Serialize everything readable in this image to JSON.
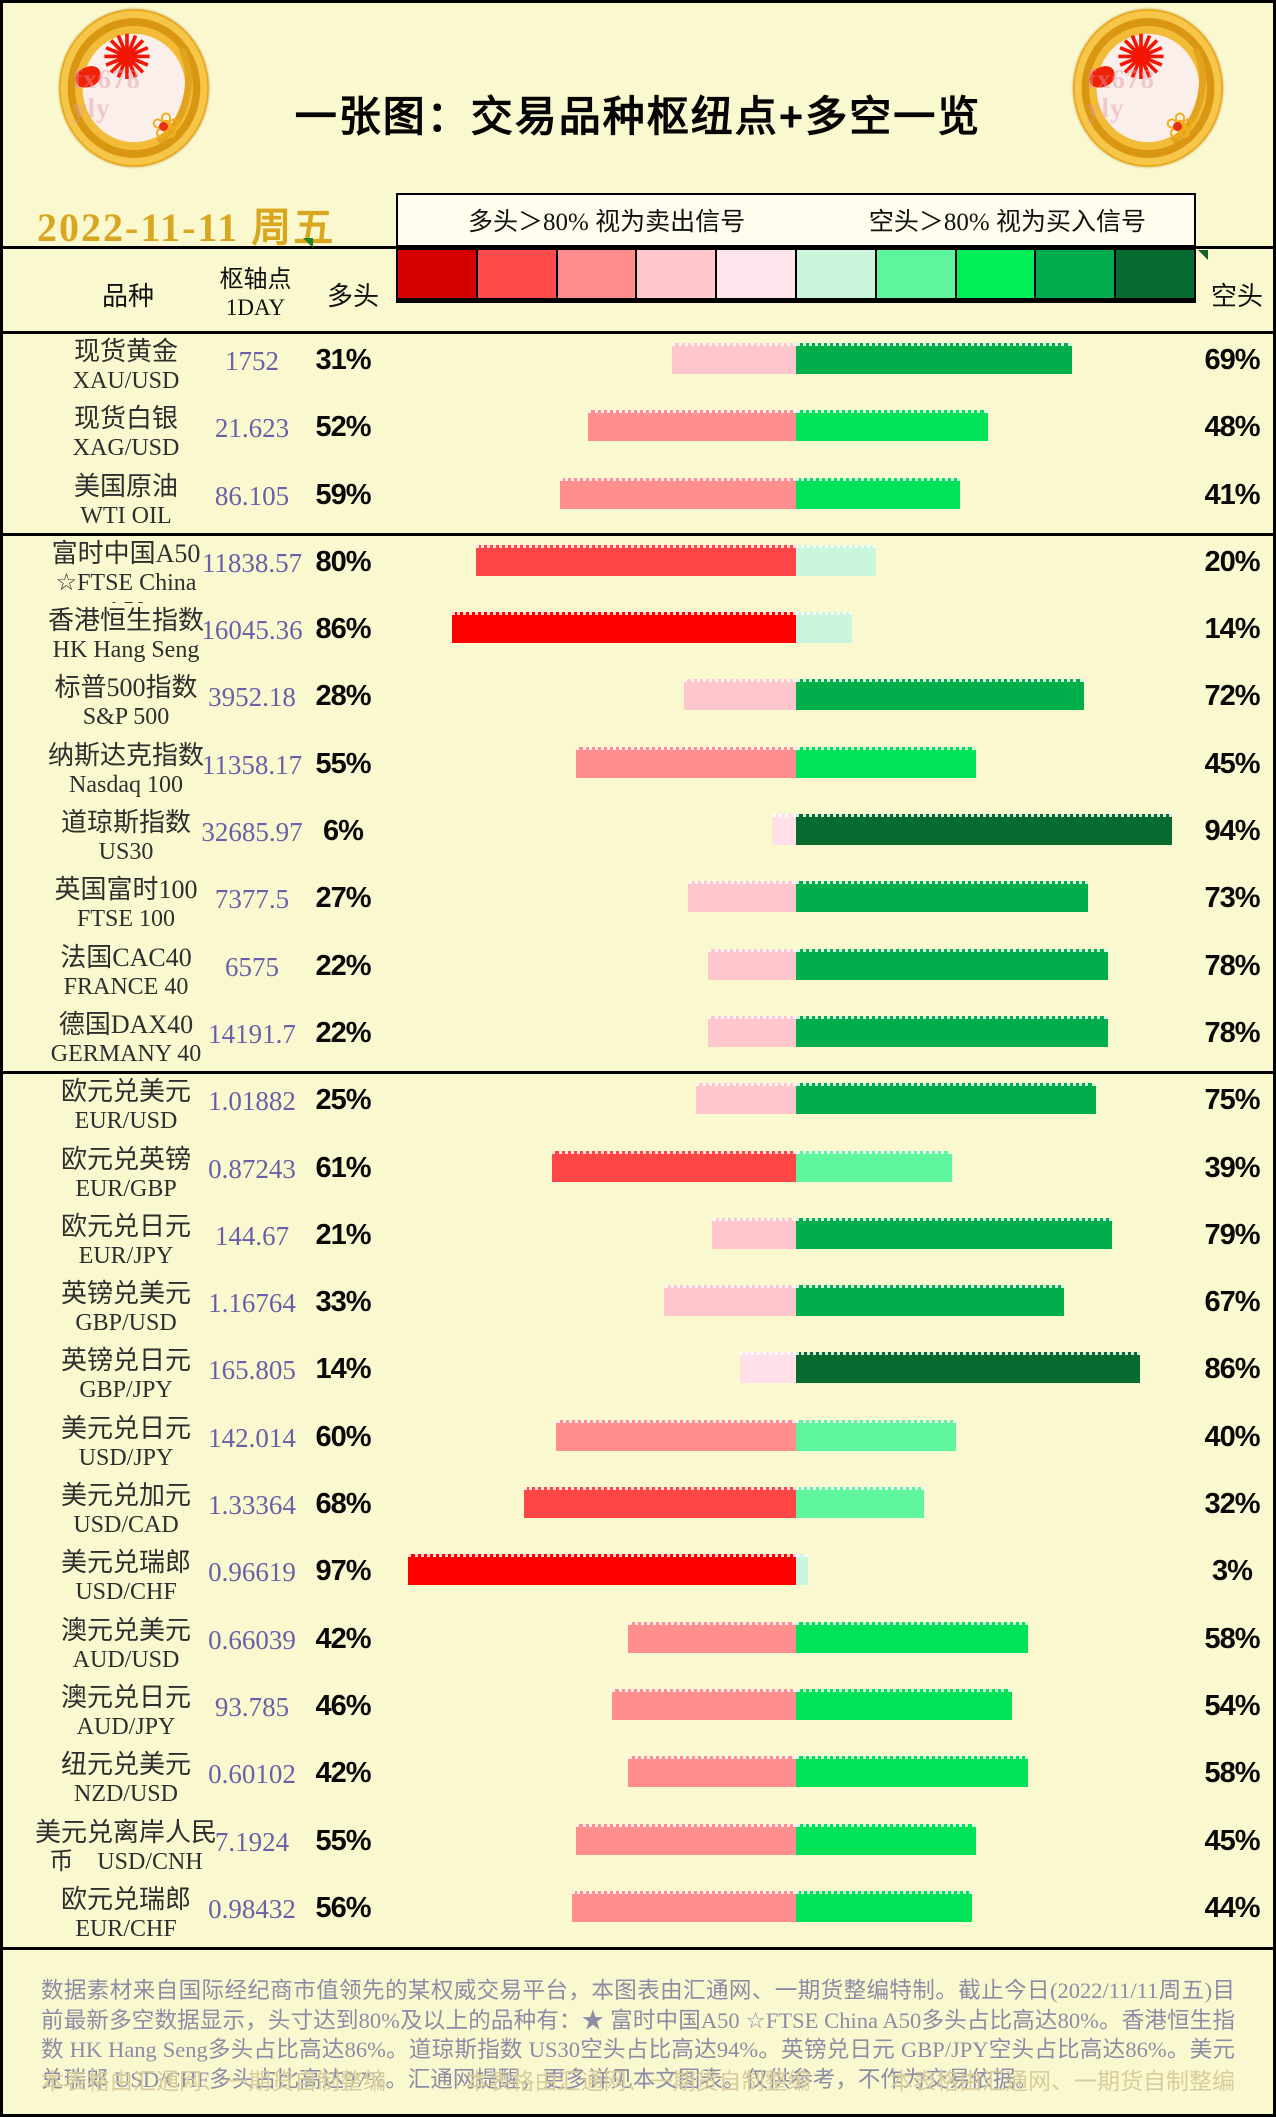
{
  "header": {
    "title": "一张图：交易品种枢纽点+多空一览",
    "date": "2022-11-11 周五",
    "logo_watermark_line1": "fx678",
    "logo_watermark_line2": "yly"
  },
  "legend": {
    "long_rule": "多头＞80% 视为卖出信号",
    "short_rule": "空头＞80% 视为买入信号"
  },
  "columns": {
    "instrument": "品种",
    "pivot_line1": "枢轴点",
    "pivot_line2": "1DAY",
    "long": "多头",
    "short": "空头"
  },
  "scale_colors": [
    "#D50000",
    "#FE4B4B",
    "#FE8E8E",
    "#FFC6CB",
    "#FFE5EC",
    "#C9F6DC",
    "#5EF59E",
    "#00EF57",
    "#00AC4B",
    "#066B2F"
  ],
  "table": {
    "rows": [
      {
        "name_lines": [
          "现货黄金",
          "XAU/USD"
        ],
        "pivot": "1752",
        "long_pct": 31,
        "short_pct": 69,
        "long_color": "#FFC6CB",
        "short_color": "#00AE4B",
        "group_end": false
      },
      {
        "name_lines": [
          "现货白银",
          "XAG/USD"
        ],
        "pivot": "21.623",
        "long_pct": 52,
        "short_pct": 48,
        "long_color": "#FF8E8E",
        "short_color": "#00E257",
        "group_end": false
      },
      {
        "name_lines": [
          "美国原油",
          "WTI OIL"
        ],
        "pivot": "86.105",
        "long_pct": 59,
        "short_pct": 41,
        "long_color": "#FF8E8E",
        "short_color": "#00E257",
        "group_end": true
      },
      {
        "name_lines": [
          "富时中国A50",
          "☆FTSE China",
          "A50"
        ],
        "pivot": "11838.57",
        "long_pct": 80,
        "short_pct": 20,
        "long_color": "#FF4646",
        "short_color": "#C9F6DC",
        "group_end": false
      },
      {
        "name_lines": [
          "香港恒生指数",
          "HK Hang Seng"
        ],
        "pivot": "16045.36",
        "long_pct": 86,
        "short_pct": 14,
        "long_color": "#FF0000",
        "short_color": "#C9F6DC",
        "group_end": false
      },
      {
        "name_lines": [
          "标普500指数",
          "S&P 500"
        ],
        "pivot": "3952.18",
        "long_pct": 28,
        "short_pct": 72,
        "long_color": "#FFC6CB",
        "short_color": "#00AE4B",
        "group_end": false
      },
      {
        "name_lines": [
          "纳斯达克指数",
          "Nasdaq 100"
        ],
        "pivot": "11358.17",
        "long_pct": 55,
        "short_pct": 45,
        "long_color": "#FF8E8E",
        "short_color": "#00E257",
        "group_end": false
      },
      {
        "name_lines": [
          "道琼斯指数",
          "US30"
        ],
        "pivot": "32685.97",
        "long_pct": 6,
        "short_pct": 94,
        "long_color": "#FFE0E9",
        "short_color": "#066B2F",
        "group_end": false
      },
      {
        "name_lines": [
          "英国富时100",
          "FTSE 100"
        ],
        "pivot": "7377.5",
        "long_pct": 27,
        "short_pct": 73,
        "long_color": "#FFC6CB",
        "short_color": "#00AE4B",
        "group_end": false
      },
      {
        "name_lines": [
          "法国CAC40",
          "FRANCE 40"
        ],
        "pivot": "6575",
        "long_pct": 22,
        "short_pct": 78,
        "long_color": "#FFC6CB",
        "short_color": "#00AE4B",
        "group_end": false
      },
      {
        "name_lines": [
          "德国DAX40",
          "GERMANY 40"
        ],
        "pivot": "14191.7",
        "long_pct": 22,
        "short_pct": 78,
        "long_color": "#FFC6CB",
        "short_color": "#00AE4B",
        "group_end": true
      },
      {
        "name_lines": [
          "欧元兑美元",
          "EUR/USD"
        ],
        "pivot": "1.01882",
        "long_pct": 25,
        "short_pct": 75,
        "long_color": "#FFC6CB",
        "short_color": "#00AE4B",
        "group_end": false
      },
      {
        "name_lines": [
          "欧元兑英镑",
          "EUR/GBP"
        ],
        "pivot": "0.87243",
        "long_pct": 61,
        "short_pct": 39,
        "long_color": "#FF4646",
        "short_color": "#5EF59E",
        "group_end": false
      },
      {
        "name_lines": [
          "欧元兑日元",
          "EUR/JPY"
        ],
        "pivot": "144.67",
        "long_pct": 21,
        "short_pct": 79,
        "long_color": "#FFC6CB",
        "short_color": "#00AE4B",
        "group_end": false
      },
      {
        "name_lines": [
          "英镑兑美元",
          "GBP/USD"
        ],
        "pivot": "1.16764",
        "long_pct": 33,
        "short_pct": 67,
        "long_color": "#FFC6CB",
        "short_color": "#00AE4B",
        "group_end": false
      },
      {
        "name_lines": [
          "英镑兑日元",
          "GBP/JPY"
        ],
        "pivot": "165.805",
        "long_pct": 14,
        "short_pct": 86,
        "long_color": "#FFE0E9",
        "short_color": "#066B2F",
        "group_end": false
      },
      {
        "name_lines": [
          "美元兑日元",
          "USD/JPY"
        ],
        "pivot": "142.014",
        "long_pct": 60,
        "short_pct": 40,
        "long_color": "#FF8E8E",
        "short_color": "#5EF59E",
        "group_end": false
      },
      {
        "name_lines": [
          "美元兑加元",
          "USD/CAD"
        ],
        "pivot": "1.33364",
        "long_pct": 68,
        "short_pct": 32,
        "long_color": "#FF4646",
        "short_color": "#5EF59E",
        "group_end": false
      },
      {
        "name_lines": [
          "美元兑瑞郎",
          "USD/CHF"
        ],
        "pivot": "0.96619",
        "long_pct": 97,
        "short_pct": 3,
        "long_color": "#FF0000",
        "short_color": "#C9F6DC",
        "group_end": false
      },
      {
        "name_lines": [
          "澳元兑美元",
          "AUD/USD"
        ],
        "pivot": "0.66039",
        "long_pct": 42,
        "short_pct": 58,
        "long_color": "#FF8E8E",
        "short_color": "#00E257",
        "group_end": false
      },
      {
        "name_lines": [
          "澳元兑日元",
          "AUD/JPY"
        ],
        "pivot": "93.785",
        "long_pct": 46,
        "short_pct": 54,
        "long_color": "#FF8E8E",
        "short_color": "#00E257",
        "group_end": false
      },
      {
        "name_lines": [
          "纽元兑美元",
          "NZD/USD"
        ],
        "pivot": "0.60102",
        "long_pct": 42,
        "short_pct": 58,
        "long_color": "#FF8E8E",
        "short_color": "#00E257",
        "group_end": false
      },
      {
        "name_lines": [
          "美元兑离岸人民",
          "币　USD/CNH"
        ],
        "pivot": "7.1924",
        "long_pct": 55,
        "short_pct": 45,
        "long_color": "#FF8E8E",
        "short_color": "#00E257",
        "group_end": false
      },
      {
        "name_lines": [
          "欧元兑瑞郎",
          "EUR/CHF"
        ],
        "pivot": "0.98432",
        "long_pct": 56,
        "short_pct": 44,
        "long_color": "#FF8E8E",
        "short_color": "#00E257",
        "group_end": false
      }
    ]
  },
  "chart_data": {
    "type": "bar",
    "orientation": "horizontal-diverging",
    "title": "一张图：交易品种枢纽点+多空一览",
    "categories": [
      "XAU/USD",
      "XAG/USD",
      "WTI OIL",
      "FTSE China A50",
      "HK Hang Seng",
      "S&P 500",
      "Nasdaq 100",
      "US30",
      "FTSE 100",
      "FRANCE 40",
      "GERMANY 40",
      "EUR/USD",
      "EUR/GBP",
      "EUR/JPY",
      "GBP/USD",
      "GBP/JPY",
      "USD/JPY",
      "USD/CAD",
      "USD/CHF",
      "AUD/USD",
      "AUD/JPY",
      "NZD/USD",
      "USD/CNH",
      "EUR/CHF"
    ],
    "series": [
      {
        "name": "多头",
        "values": [
          31,
          52,
          59,
          80,
          86,
          28,
          55,
          6,
          27,
          22,
          22,
          25,
          61,
          21,
          33,
          14,
          60,
          68,
          97,
          42,
          46,
          42,
          55,
          56
        ]
      },
      {
        "name": "空头",
        "values": [
          69,
          48,
          41,
          20,
          14,
          72,
          45,
          94,
          73,
          78,
          78,
          75,
          39,
          79,
          67,
          86,
          40,
          32,
          3,
          58,
          54,
          58,
          45,
          44
        ]
      }
    ],
    "pivots_1day": [
      1752,
      21.623,
      86.105,
      11838.57,
      16045.36,
      3952.18,
      11358.17,
      32685.97,
      7377.5,
      6575,
      14191.7,
      1.01882,
      0.87243,
      144.67,
      1.16764,
      165.805,
      142.014,
      1.33364,
      0.96619,
      0.66039,
      93.785,
      0.60102,
      7.1924,
      0.98432
    ],
    "xlabel": "",
    "ylabel": "",
    "xlim": [
      -100,
      100
    ],
    "legend_position": "top"
  },
  "footer": {
    "paragraph": "数据素材来自国际经纪商市值领先的某权威交易平台，本图表由汇通网、一期货整编特制。截止今日(2022/11/11周五)目前最新多空数据显示，头寸达到80%及以上的品种有：★ 富时中国A50 ☆FTSE China A50多头占比高达80%。香港恒生指数 HK Hang Seng多头占比高达86%。道琼斯指数 US30空头占比高达94%。英镑兑日元 GBP/JPY空头占比高达86%。美元兑瑞郎 USD/CHF多头占比高达97%。汇通网提醒，更多详见本文图表。仅供参考，不作为交易依据。",
    "watermark": "本表格由汇通网、一期货自制整编"
  }
}
